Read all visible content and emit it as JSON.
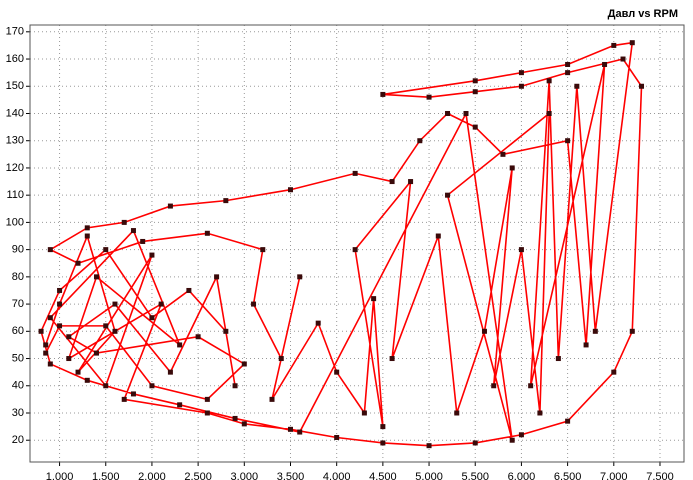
{
  "chart_data": {
    "type": "line",
    "title": "Давл vs RPM",
    "x": [
      0.85,
      1.0,
      1.3,
      1.6,
      1.2,
      2.0,
      1.5,
      0.9,
      1.8,
      2.3,
      1.4,
      1.1,
      2.1,
      1.7,
      2.6,
      3.0,
      3.5,
      4.0,
      4.5,
      5.0,
      5.5,
      6.0,
      6.5,
      7.0,
      7.2,
      7.3,
      7.1,
      6.5,
      6.0,
      5.5,
      5.0,
      4.5,
      5.5,
      6.0,
      6.5,
      7.0,
      7.2,
      6.8,
      6.6,
      6.4,
      6.3,
      6.1,
      6.9,
      6.7,
      6.5,
      5.8,
      5.5,
      5.2,
      4.9,
      4.6,
      4.2,
      3.5,
      2.8,
      2.2,
      1.7,
      1.3,
      0.9,
      1.2,
      1.9,
      2.6,
      3.2,
      3.1,
      3.4,
      3.6,
      3.3,
      3.8,
      4.0,
      4.3,
      4.4,
      4.5,
      4.2,
      4.8,
      4.6,
      5.1,
      5.3,
      5.6,
      5.9,
      5.7,
      6.0,
      6.2,
      6.3,
      5.2,
      5.9,
      5.4,
      3.6,
      2.9,
      2.3,
      1.8,
      1.3,
      0.9,
      0.8,
      1.0,
      1.5,
      2.0,
      2.4,
      2.8,
      2.9,
      2.7,
      2.2,
      1.6,
      1.1,
      1.4,
      2.5,
      3.0,
      2.6,
      2.0,
      1.5,
      1.0,
      0.85
    ],
    "series": [
      {
        "color": "#ff0000",
        "marker_color": "#3a0a0a",
        "values": [
          55,
          70,
          95,
          60,
          45,
          88,
          40,
          65,
          97,
          55,
          80,
          50,
          70,
          35,
          30,
          26,
          24,
          21,
          19,
          18,
          19,
          22,
          27,
          45,
          60,
          150,
          160,
          155,
          150,
          148,
          146,
          147,
          152,
          155,
          158,
          165,
          166,
          60,
          150,
          50,
          152,
          40,
          158,
          55,
          130,
          125,
          135,
          140,
          130,
          115,
          118,
          112,
          108,
          106,
          100,
          98,
          90,
          85,
          93,
          96,
          90,
          70,
          50,
          80,
          35,
          63,
          45,
          30,
          72,
          25,
          90,
          115,
          50,
          95,
          30,
          60,
          120,
          40,
          90,
          30,
          140,
          110,
          20,
          140,
          23,
          28,
          33,
          37,
          42,
          48,
          60,
          75,
          90,
          65,
          75,
          60,
          40,
          80,
          45,
          70,
          58,
          52,
          58,
          48,
          35,
          40,
          62,
          62,
          52
        ]
      }
    ],
    "xlim": [
      0.68,
      7.76
    ],
    "ylim": [
      12,
      172.5
    ],
    "xticks": [
      {
        "value": 1,
        "label": "1.000"
      },
      {
        "value": 1.5,
        "label": "1.500"
      },
      {
        "value": 2,
        "label": "2.000"
      },
      {
        "value": 2.5,
        "label": "2.500"
      },
      {
        "value": 3,
        "label": "3.000"
      },
      {
        "value": 3.5,
        "label": "3.500"
      },
      {
        "value": 4,
        "label": "4.000"
      },
      {
        "value": 4.5,
        "label": "4.500"
      },
      {
        "value": 5,
        "label": "5.000"
      },
      {
        "value": 5.5,
        "label": "5.500"
      },
      {
        "value": 6,
        "label": "6.000"
      },
      {
        "value": 6.5,
        "label": "6.500"
      },
      {
        "value": 7,
        "label": "7.000"
      },
      {
        "value": 7.5,
        "label": "7.500"
      }
    ],
    "yticks": [
      20,
      30,
      40,
      50,
      60,
      70,
      80,
      90,
      100,
      110,
      120,
      130,
      140,
      150,
      160,
      170
    ],
    "grid": true
  }
}
